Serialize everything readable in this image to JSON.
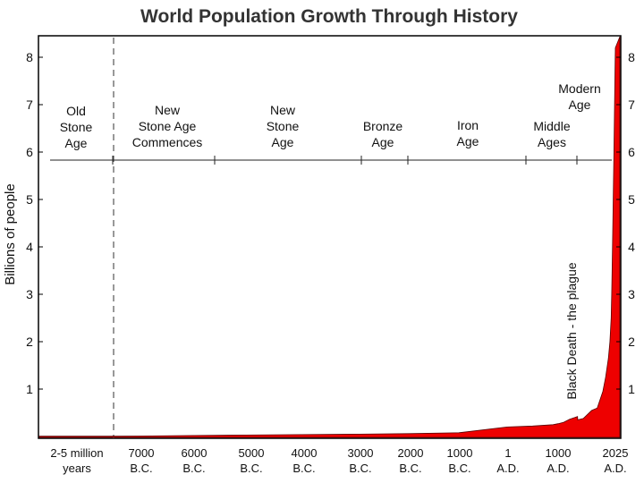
{
  "chart_data": {
    "type": "area",
    "title": "World Population Growth Through History",
    "ylabel": "Billions of people",
    "ylim": [
      0,
      8.5
    ],
    "y_ticks": [
      "1",
      "2",
      "3",
      "4",
      "5",
      "6",
      "7",
      "8"
    ],
    "x_labels": [
      [
        "2-5 million",
        "years"
      ],
      [
        "7000",
        "B.C."
      ],
      [
        "6000",
        "B.C."
      ],
      [
        "5000",
        "B.C."
      ],
      [
        "4000",
        "B.C."
      ],
      [
        "3000",
        "B.C."
      ],
      [
        "2000",
        "B.C."
      ],
      [
        "1000",
        "B.C."
      ],
      [
        "1",
        "A.D."
      ],
      [
        "1000",
        "A.D."
      ],
      [
        "2025",
        "A.D."
      ]
    ],
    "eras": [
      {
        "lines": [
          "Old",
          "Stone",
          "Age"
        ]
      },
      {
        "lines": [
          "New",
          "Stone Age",
          "Commences"
        ]
      },
      {
        "lines": [
          "New",
          "Stone",
          "Age"
        ]
      },
      {
        "lines": [
          "Bronze",
          "Age"
        ]
      },
      {
        "lines": [
          "Iron",
          "Age"
        ]
      },
      {
        "lines": [
          "Middle",
          "Ages"
        ]
      },
      {
        "lines": [
          "Modern",
          "Age"
        ]
      }
    ],
    "annotation": "Black Death - the plague",
    "series": [
      {
        "x": [
          -8500,
          -7000,
          -6000,
          -5000,
          -4000,
          -3000,
          -2000,
          -1000,
          1,
          500,
          900,
          1000,
          1100,
          1200,
          1300,
          1347,
          1351,
          1450,
          1600,
          1700,
          1800,
          1850,
          1900,
          1927,
          1950,
          1960,
          1974,
          1987,
          1999,
          2011,
          2022,
          2025
        ],
        "values": [
          0.005,
          0.01,
          0.02,
          0.03,
          0.04,
          0.05,
          0.06,
          0.08,
          0.2,
          0.22,
          0.25,
          0.27,
          0.3,
          0.36,
          0.4,
          0.42,
          0.35,
          0.38,
          0.55,
          0.6,
          0.95,
          1.25,
          1.65,
          2.0,
          2.5,
          3.0,
          4.0,
          5.0,
          6.0,
          7.0,
          8.0,
          8.2
        ]
      }
    ],
    "fill_color": "#ee0000"
  }
}
